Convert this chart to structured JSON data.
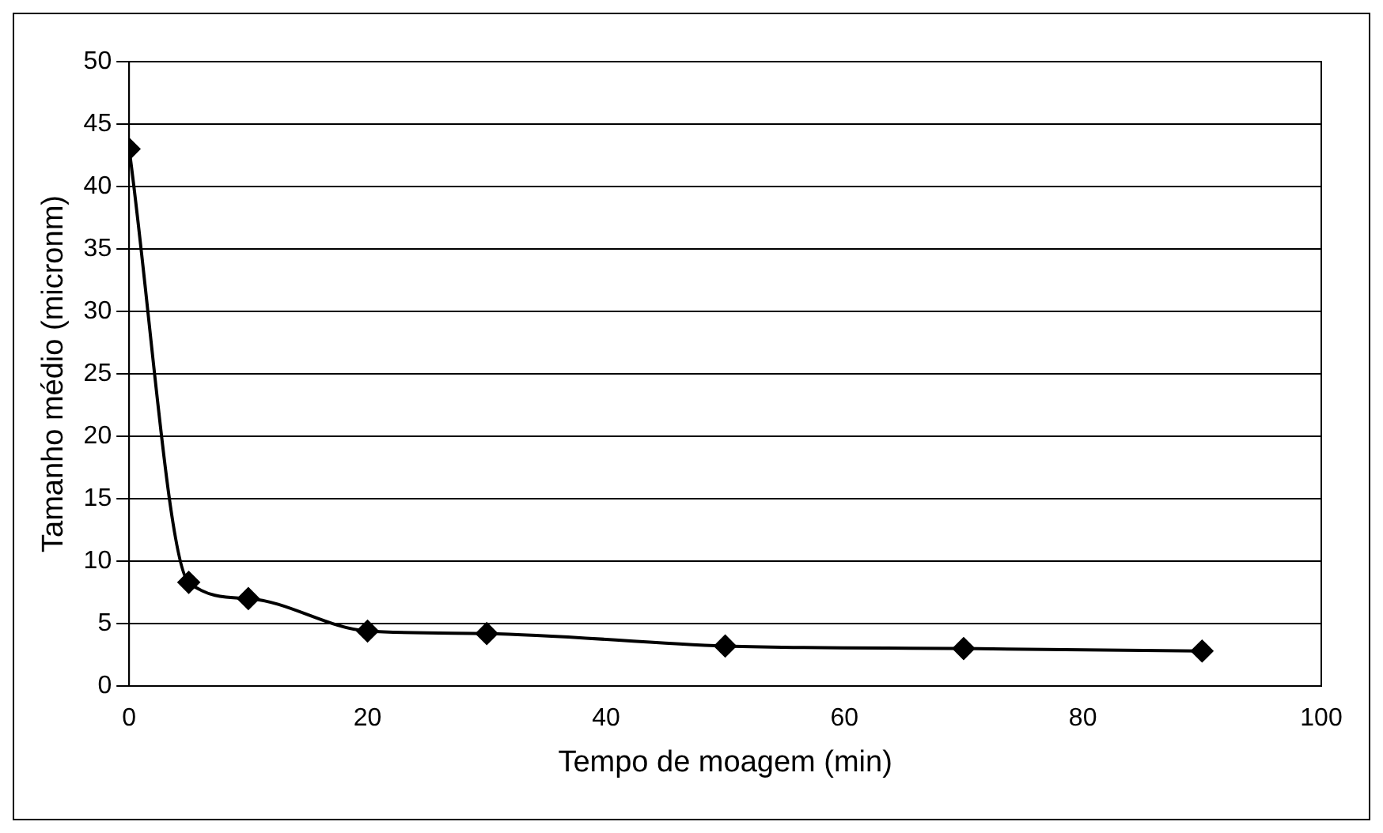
{
  "chart_data": {
    "type": "line",
    "xlabel": "Tempo de moagem (min)",
    "ylabel": "Tamanho médio (micronm)",
    "x": [
      0,
      5,
      10,
      20,
      30,
      50,
      70,
      90
    ],
    "series": [
      {
        "color": "#000000",
        "values": [
          43,
          8.3,
          7,
          4.4,
          4.2,
          3.2,
          3.0,
          2.8
        ]
      }
    ],
    "xlim": [
      0,
      100
    ],
    "xticks": [
      0,
      20,
      40,
      60,
      80,
      100
    ],
    "ylim": [
      0,
      50
    ],
    "yticks": [
      0,
      5,
      10,
      15,
      20,
      25,
      30,
      35,
      40,
      45,
      50
    ],
    "grid": "y",
    "legend": false,
    "marker": "diamond",
    "line_style": "solid"
  }
}
